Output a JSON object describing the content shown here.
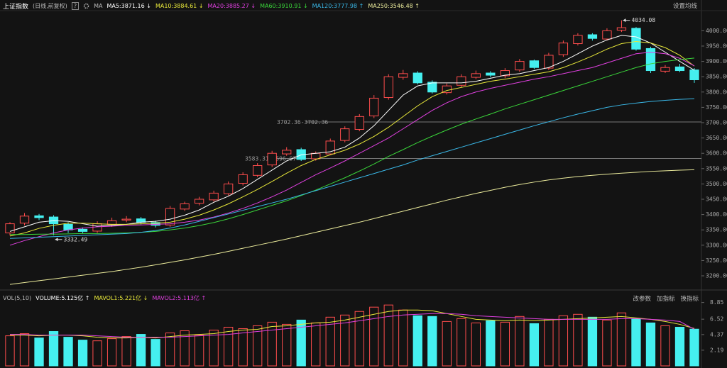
{
  "header": {
    "title": "上证指数",
    "subtitle": "(日线,前复权)",
    "help": "?",
    "ma_label": "MA",
    "settings": "设置均线"
  },
  "chart_data": [
    {
      "type": "candlestick",
      "open": [
        3340,
        3372,
        3396,
        3392,
        3368,
        3352,
        3346,
        3368,
        3382,
        3386,
        3374,
        3366,
        3418,
        3437,
        3448,
        3468,
        3502,
        3528,
        3562,
        3598,
        3612,
        3582,
        3598,
        3642,
        3678,
        3722,
        3782,
        3848,
        3862,
        3832,
        3798,
        3822,
        3848,
        3862,
        3853,
        3872,
        3902,
        3878,
        3922,
        3958,
        3987,
        3973,
        4002,
        4008,
        3942,
        3868,
        3882,
        3872
      ],
      "high": [
        3375,
        3405,
        3402,
        3398,
        3375,
        3358,
        3378,
        3390,
        3395,
        3392,
        3380,
        3428,
        3442,
        3458,
        3478,
        3508,
        3538,
        3568,
        3608,
        3620,
        3618,
        3606,
        3648,
        3688,
        3728,
        3790,
        3858,
        3872,
        3868,
        3838,
        3828,
        3858,
        3870,
        3868,
        3878,
        3908,
        3906,
        3928,
        3968,
        3992,
        3992,
        4008,
        4034.08,
        4012,
        3948,
        3888,
        3892,
        3878
      ],
      "low": [
        3332,
        3365,
        3382,
        3332.49,
        3340,
        3338,
        3340,
        3360,
        3375,
        3368,
        3358,
        3360,
        3412,
        3430,
        3442,
        3462,
        3495,
        3522,
        3555,
        3592,
        3575,
        3576,
        3594,
        3636,
        3672,
        3715,
        3775,
        3840,
        3825,
        3795,
        3792,
        3815,
        3842,
        3848,
        3845,
        3866,
        3875,
        3872,
        3915,
        3952,
        3968,
        3968,
        3996,
        3935,
        3862,
        3862,
        3865,
        3830
      ],
      "close": [
        3370,
        3395,
        3390,
        3370,
        3350,
        3345,
        3370,
        3380,
        3385,
        3375,
        3365,
        3420,
        3435,
        3450,
        3470,
        3500,
        3530,
        3560,
        3600,
        3610,
        3580,
        3600,
        3640,
        3680,
        3720,
        3780,
        3850,
        3860,
        3830,
        3800,
        3820,
        3850,
        3860,
        3855,
        3870,
        3900,
        3880,
        3920,
        3960,
        3985,
        3975,
        4000,
        4010,
        3940,
        3870,
        3880,
        3870,
        3840
      ],
      "up_color": "#ff4d4d",
      "down_color": "#45f0f0",
      "ylim": [
        3163,
        4068
      ],
      "yticks": [
        {
          "value": 3200,
          "label": "3200.00"
        },
        {
          "value": 3250,
          "label": "3250.00"
        },
        {
          "value": 3300,
          "label": "3300.00"
        },
        {
          "value": 3350,
          "label": "3350.00"
        },
        {
          "value": 3400,
          "label": "3400.00"
        },
        {
          "value": 3450,
          "label": "3450.00"
        },
        {
          "value": 3500,
          "label": "3500.00"
        },
        {
          "value": 3550,
          "label": "3550.00"
        },
        {
          "value": 3600,
          "label": "3600.00"
        },
        {
          "value": 3650,
          "label": "3650.00"
        },
        {
          "value": 3700,
          "label": "3700.00"
        },
        {
          "value": 3750,
          "label": "3750.00"
        },
        {
          "value": 3800,
          "label": "3800.00"
        },
        {
          "value": 3850,
          "label": "3850.00"
        },
        {
          "value": 3900,
          "label": "3900.00"
        },
        {
          "value": 3950,
          "label": "3950.00"
        },
        {
          "value": 4000,
          "label": "4000.00"
        }
      ],
      "series": [
        {
          "name": "MA5:3871.16 ↓",
          "color": "#ffffff",
          "values": [
            3345,
            3360,
            3375,
            3380,
            3378,
            3370,
            3362,
            3365,
            3368,
            3375,
            3378,
            3385,
            3398,
            3415,
            3440,
            3460,
            3485,
            3515,
            3545,
            3575,
            3595,
            3600,
            3605,
            3620,
            3650,
            3690,
            3740,
            3790,
            3820,
            3830,
            3830,
            3830,
            3835,
            3845,
            3855,
            3860,
            3870,
            3880,
            3900,
            3925,
            3950,
            3970,
            3985,
            3980,
            3960,
            3930,
            3900,
            3871.16
          ]
        },
        {
          "name": "MA10:3884.61 ↓",
          "color": "#e8e83a",
          "values": [
            3330,
            3340,
            3355,
            3365,
            3372,
            3372,
            3370,
            3368,
            3368,
            3370,
            3372,
            3375,
            3385,
            3398,
            3415,
            3435,
            3458,
            3482,
            3508,
            3535,
            3560,
            3580,
            3595,
            3610,
            3630,
            3655,
            3685,
            3720,
            3755,
            3785,
            3805,
            3815,
            3825,
            3835,
            3842,
            3850,
            3858,
            3866,
            3880,
            3898,
            3918,
            3940,
            3958,
            3965,
            3960,
            3945,
            3920,
            3884.61
          ]
        },
        {
          "name": "MA20:3885.27 ↓",
          "color": "#e040e0",
          "values": [
            3300,
            3315,
            3328,
            3340,
            3350,
            3356,
            3360,
            3362,
            3365,
            3366,
            3368,
            3370,
            3375,
            3382,
            3392,
            3405,
            3420,
            3438,
            3458,
            3480,
            3505,
            3530,
            3552,
            3575,
            3600,
            3625,
            3650,
            3680,
            3710,
            3740,
            3765,
            3785,
            3800,
            3812,
            3822,
            3832,
            3842,
            3850,
            3860,
            3870,
            3880,
            3895,
            3910,
            3925,
            3930,
            3925,
            3910,
            3885.27
          ]
        },
        {
          "name": "MA60:3910.91 ↓",
          "color": "#3ad63a",
          "values": [
            3335,
            3335,
            3336,
            3336,
            3337,
            3338,
            3338,
            3339,
            3340,
            3342,
            3345,
            3350,
            3356,
            3364,
            3374,
            3386,
            3400,
            3415,
            3430,
            3445,
            3462,
            3480,
            3500,
            3520,
            3542,
            3565,
            3590,
            3612,
            3635,
            3656,
            3676,
            3695,
            3712,
            3728,
            3745,
            3760,
            3775,
            3790,
            3805,
            3820,
            3835,
            3850,
            3865,
            3880,
            3892,
            3900,
            3906,
            3910.91
          ]
        },
        {
          "name": "MA120:3777.98 ↑",
          "color": "#3ab8e8",
          "values": [
            3322,
            3324,
            3326,
            3328,
            3330,
            3332,
            3334,
            3336,
            3338,
            3342,
            3348,
            3356,
            3366,
            3378,
            3390,
            3402,
            3414,
            3426,
            3438,
            3450,
            3464,
            3478,
            3492,
            3506,
            3520,
            3534,
            3548,
            3562,
            3578,
            3592,
            3606,
            3620,
            3634,
            3648,
            3662,
            3676,
            3690,
            3703,
            3716,
            3728,
            3739,
            3750,
            3758,
            3764,
            3769,
            3773,
            3776,
            3777.98
          ]
        },
        {
          "name": "MA250:3546.48 ↑",
          "color": "#ecec9c",
          "values": [
            3172,
            3178,
            3184,
            3190,
            3196,
            3202,
            3208,
            3214,
            3221,
            3228,
            3236,
            3244,
            3252,
            3261,
            3270,
            3280,
            3290,
            3300,
            3310,
            3320,
            3331,
            3342,
            3353,
            3364,
            3375,
            3387,
            3399,
            3411,
            3423,
            3435,
            3447,
            3458,
            3469,
            3479,
            3489,
            3498,
            3506,
            3513,
            3519,
            3524,
            3528,
            3532,
            3535,
            3538,
            3541,
            3543,
            3545,
            3546.48
          ]
        }
      ],
      "ref_lines": [
        {
          "value": 3702.36,
          "label": "3702.36-3702.36"
        },
        {
          "value": 3583.31,
          "label": "3583.31-3596.97"
        }
      ],
      "annotations": [
        {
          "value": 4034.08,
          "label": "4034.08"
        },
        {
          "value": 3332.49,
          "label": "3332.49"
        }
      ]
    },
    {
      "type": "bar",
      "title": "VOL(5,10)",
      "series": [
        {
          "name": "VOLUME:5.125亿 ↑",
          "color": "#ffffff",
          "style": "bar",
          "values": [
            4.2,
            4.5,
            3.9,
            4.8,
            4.0,
            3.6,
            3.5,
            3.8,
            4.1,
            4.4,
            3.7,
            4.6,
            4.9,
            4.3,
            5.0,
            5.4,
            5.2,
            5.6,
            6.1,
            5.8,
            6.4,
            6.0,
            6.8,
            7.1,
            7.6,
            8.2,
            8.5,
            7.8,
            7.0,
            6.9,
            6.2,
            6.6,
            6.0,
            6.3,
            6.1,
            6.9,
            5.9,
            6.5,
            7.0,
            7.2,
            6.8,
            6.4,
            7.4,
            6.6,
            6.0,
            5.6,
            5.4,
            5.125
          ]
        },
        {
          "name": "MAVOL1:5.221亿 ↓",
          "color": "#e8e83a",
          "style": "line",
          "values": [
            4.3,
            4.3,
            4.2,
            4.3,
            4.3,
            4.2,
            4.0,
            3.9,
            3.9,
            4.0,
            3.9,
            4.1,
            4.3,
            4.4,
            4.5,
            4.8,
            5.0,
            5.1,
            5.5,
            5.6,
            5.8,
            6.0,
            6.1,
            6.4,
            6.8,
            7.2,
            7.6,
            7.8,
            7.8,
            7.7,
            7.3,
            6.9,
            6.5,
            6.4,
            6.3,
            6.4,
            6.3,
            6.4,
            6.5,
            6.6,
            6.7,
            6.8,
            6.9,
            6.7,
            6.5,
            6.2,
            5.8,
            5.221
          ]
        },
        {
          "name": "MAVOL2:5.113亿 ↑",
          "color": "#e040e0",
          "style": "line",
          "values": [
            4.4,
            4.4,
            4.3,
            4.3,
            4.3,
            4.3,
            4.2,
            4.1,
            4.0,
            4.0,
            4.0,
            4.0,
            4.1,
            4.2,
            4.3,
            4.4,
            4.6,
            4.8,
            5.0,
            5.2,
            5.4,
            5.6,
            5.8,
            6.0,
            6.3,
            6.6,
            6.9,
            7.1,
            7.2,
            7.3,
            7.3,
            7.2,
            7.0,
            6.9,
            6.8,
            6.7,
            6.6,
            6.5,
            6.5,
            6.5,
            6.5,
            6.5,
            6.6,
            6.6,
            6.5,
            6.4,
            6.2,
            5.113
          ]
        }
      ],
      "ylim": [
        0,
        10.1
      ],
      "yticks": [
        2.19,
        4.37,
        6.52,
        8.85
      ],
      "tools": [
        "改参数",
        "加指标",
        "换指标"
      ]
    }
  ]
}
